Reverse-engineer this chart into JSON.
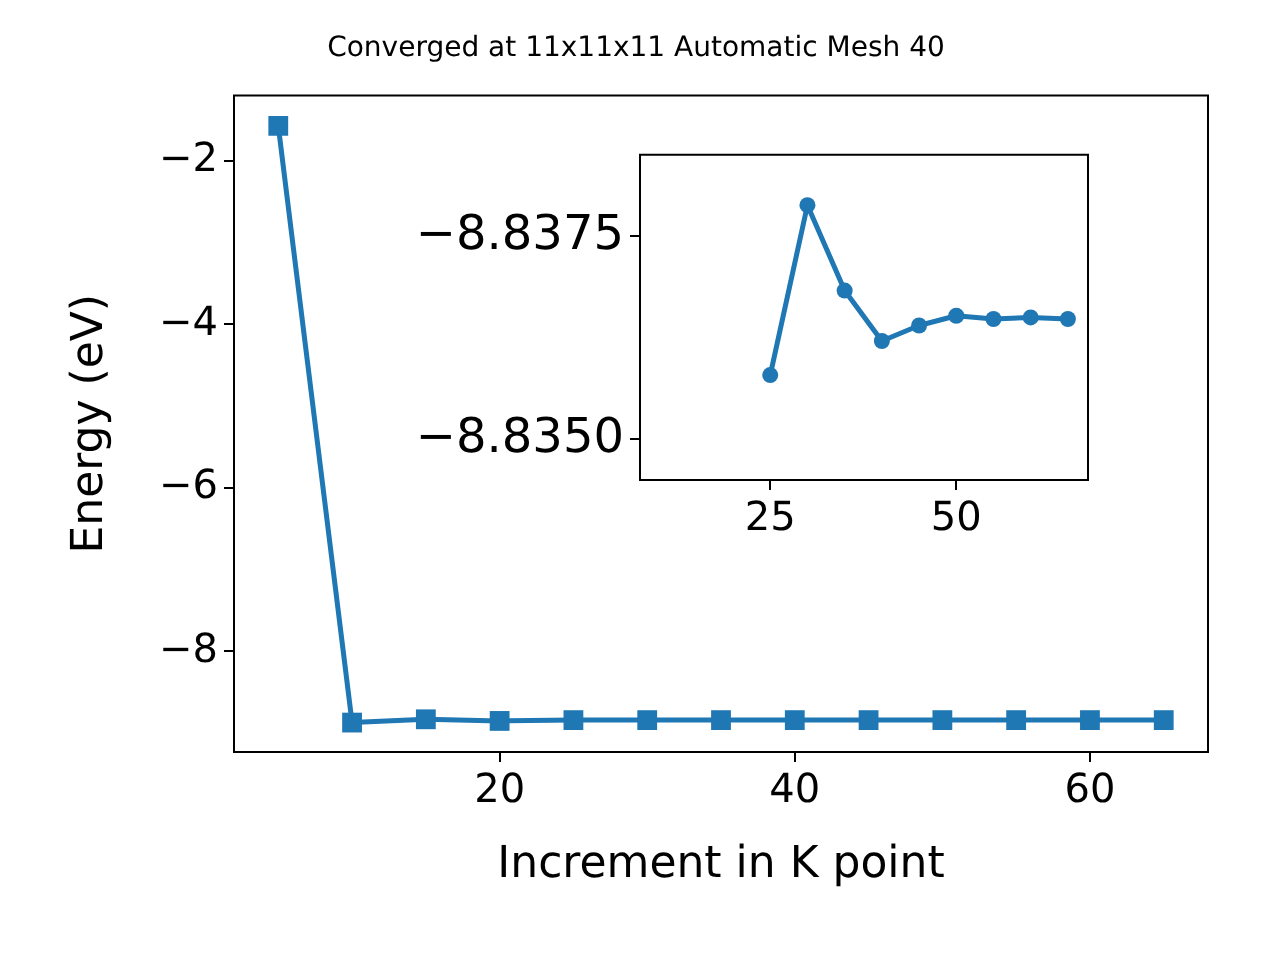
{
  "chart_data": [
    {
      "type": "line",
      "title": "Converged at 11x11x11 Automatic Mesh 40",
      "xlabel": "Increment in K point",
      "ylabel": "Energy (eV)",
      "x": [
        5,
        10,
        15,
        20,
        25,
        30,
        35,
        40,
        45,
        50,
        55,
        60,
        65
      ],
      "series": [
        {
          "color": "#1f77b4",
          "values": [
            -1.57,
            -8.87,
            -8.83,
            -8.85,
            -8.84,
            -8.84,
            -8.84,
            -8.84,
            -8.84,
            -8.84,
            -8.84,
            -8.84,
            -8.84
          ]
        }
      ],
      "xlim": [
        2,
        68
      ],
      "xticks": [
        20,
        40,
        60
      ],
      "ylim": [
        -9.23,
        -1.2
      ],
      "yticks": [
        {
          "value": -2,
          "label": "−2"
        },
        {
          "value": -4,
          "label": "−4"
        },
        {
          "value": -6,
          "label": "−6"
        },
        {
          "value": -8,
          "label": "−8"
        }
      ],
      "grid": false,
      "legend": false,
      "marker": "square",
      "line_style": "solid"
    },
    {
      "type": "line",
      "x": [
        25,
        30,
        35,
        40,
        45,
        50,
        55,
        60,
        65
      ],
      "series": [
        {
          "color": "#1f77b4",
          "values": [
            -8.83579,
            -8.83788,
            -8.83683,
            -8.83621,
            -8.8364,
            -8.83652,
            -8.83648,
            -8.8365,
            -8.83648
          ]
        }
      ],
      "xlim": [
        7.5,
        67.7
      ],
      "xticks": [
        25,
        50
      ],
      "ylim": [
        -8.8345,
        -8.8385
      ],
      "yticks": [
        {
          "value": -8.8375,
          "label": "−8.8375"
        },
        {
          "value": -8.835,
          "label": "−8.8350"
        }
      ],
      "grid": false,
      "legend": false,
      "marker": "circle",
      "line_style": "solid"
    }
  ]
}
